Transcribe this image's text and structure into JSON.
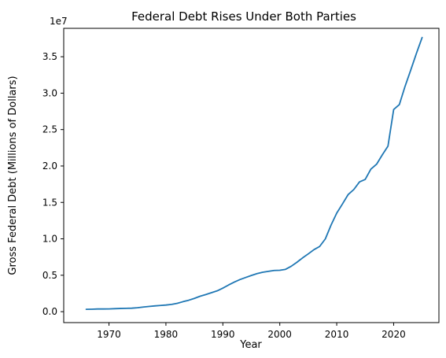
{
  "chart_data": {
    "type": "line",
    "title": "Federal Debt Rises Under Both Parties",
    "xlabel": "Year",
    "ylabel": "Gross Federal Debt (Millions of Dollars)",
    "y_scale_label": "1e7",
    "x_ticks": [
      1970,
      1980,
      1990,
      2000,
      2010,
      2020
    ],
    "y_ticks": [
      0.0,
      0.5,
      1.0,
      1.5,
      2.0,
      2.5,
      3.0,
      3.5
    ],
    "y_tick_scale": 10000000,
    "xlim": [
      1962.05,
      2027.95
    ],
    "ylim": [
      -1500000,
      38900000
    ],
    "grid": false,
    "series": [
      {
        "color": "#1f77b4",
        "x": [
          1966,
          1967,
          1968,
          1969,
          1970,
          1971,
          1972,
          1973,
          1974,
          1975,
          1976,
          1977,
          1978,
          1979,
          1980,
          1981,
          1982,
          1983,
          1984,
          1985,
          1986,
          1987,
          1988,
          1989,
          1990,
          1991,
          1992,
          1993,
          1994,
          1995,
          1996,
          1997,
          1998,
          1999,
          2000,
          2001,
          2002,
          2003,
          2004,
          2005,
          2006,
          2007,
          2008,
          2009,
          2010,
          2011,
          2012,
          2013,
          2014,
          2015,
          2016,
          2017,
          2018,
          2019,
          2020,
          2021,
          2022,
          2023,
          2024,
          2025
        ],
        "y": [
          320000,
          340000,
          370000,
          370000,
          380000,
          410000,
          440000,
          460000,
          480000,
          540000,
          630000,
          710000,
          790000,
          850000,
          910000,
          1000000,
          1150000,
          1370000,
          1570000,
          1820000,
          2120000,
          2350000,
          2600000,
          2860000,
          3230000,
          3660000,
          4060000,
          4410000,
          4690000,
          4970000,
          5220000,
          5410000,
          5530000,
          5660000,
          5680000,
          5810000,
          6230000,
          6780000,
          7380000,
          7930000,
          8510000,
          8950000,
          9990000,
          11880000,
          13530000,
          14780000,
          16070000,
          16770000,
          17820000,
          18150000,
          19570000,
          20240000,
          21520000,
          22720000,
          27750000,
          28430000,
          30930000,
          33170000,
          35460000,
          37640000
        ]
      }
    ]
  }
}
